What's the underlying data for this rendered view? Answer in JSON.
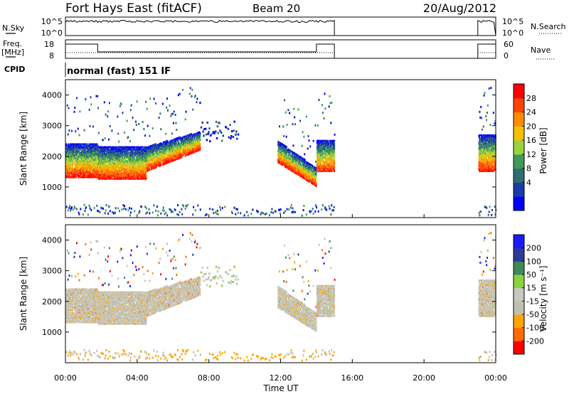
{
  "header": {
    "station": "Fort Hays East (fitACF)",
    "beam": "Beam 20",
    "date": "20/Aug/2012",
    "cpid_label": "CPID",
    "cpid_value": "normal (fast) 151 IF"
  },
  "strip_panels": {
    "noise": {
      "left_label": "N.Sky",
      "right_label": "N.Search",
      "left_ticks": [
        "10^5",
        "10^0"
      ],
      "right_ticks": [
        "10^5",
        "10^0"
      ]
    },
    "freq": {
      "left_label": "Freq.",
      "left_unit": "[MHz]",
      "right_label": "Nave",
      "left_ticks": [
        "18",
        "8"
      ],
      "right_ticks": [
        "60",
        "0"
      ]
    }
  },
  "colors": {
    "power": [
      "#0000ff",
      "#1a3ca8",
      "#2e6e70",
      "#3f9a5a",
      "#9ad23e",
      "#f5c000",
      "#ff8c00",
      "#ff4500",
      "#ff0000"
    ],
    "velocity": [
      "#ff0000",
      "#ff6a00",
      "#ffa500",
      "#c0c0b0",
      "#c8c8c0",
      "#8ad23e",
      "#3d8a5a",
      "#2c3a9a",
      "#1a1aff"
    ]
  },
  "chart_data": [
    {
      "type": "heatmap",
      "panel": "power",
      "ylabel": "Slant Range [km]",
      "ylim": [
        0,
        4500
      ],
      "yticks": [
        "4000",
        "3000",
        "2000",
        "1000"
      ],
      "xlim": [
        0,
        24
      ],
      "colorbar": {
        "label": "Power [dB]",
        "ticks": [
          "28",
          "24",
          "20",
          "16",
          "12",
          "8",
          "4"
        ]
      },
      "echo_bands": [
        {
          "start_ut": 0.0,
          "end_ut": 1.8,
          "lower_km": 1300,
          "upper_km": 2400
        },
        {
          "start_ut": 1.8,
          "end_ut": 4.5,
          "lower_km": 1250,
          "upper_km": 2300
        },
        {
          "start_ut": 4.5,
          "end_ut": 7.5,
          "lower_km": 1700,
          "upper_km": 2700
        },
        {
          "start_ut": 11.8,
          "end_ut": 14.0,
          "lower_km": 1000,
          "upper_km": 2400
        },
        {
          "start_ut": 14.0,
          "end_ut": 15.0,
          "lower_km": 1500,
          "upper_km": 2500
        },
        {
          "start_ut": 23.0,
          "end_ut": 24.0,
          "lower_km": 1500,
          "upper_km": 2700
        }
      ]
    },
    {
      "type": "heatmap",
      "panel": "velocity",
      "ylabel": "Slant Range [km]",
      "ylim": [
        0,
        4500
      ],
      "yticks": [
        "4000",
        "3000",
        "2000",
        "1000"
      ],
      "xlim": [
        0,
        24
      ],
      "xticks": [
        "00:00",
        "04:00",
        "08:00",
        "12:00",
        "16:00",
        "20:00",
        "00:00"
      ],
      "xlabel": "Time UT",
      "colorbar": {
        "label": "Velocity [m s⁻¹]",
        "ticks": [
          "200",
          "100",
          "50",
          "15",
          "-15",
          "-50",
          "-100",
          "-200"
        ]
      }
    }
  ]
}
